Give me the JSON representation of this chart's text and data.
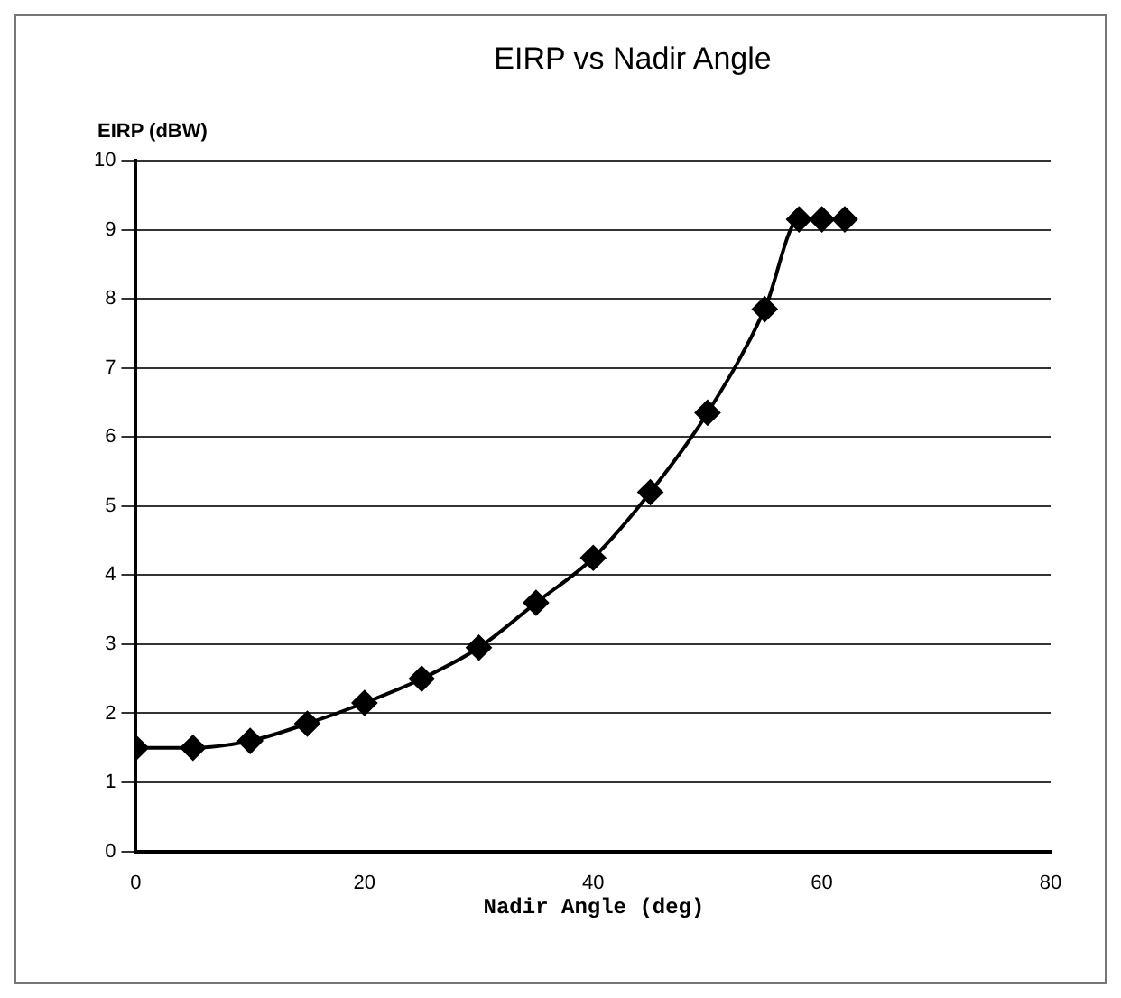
{
  "chart_data": {
    "type": "line",
    "title": "EIRP vs Nadir Angle",
    "xlabel": "Nadir Angle (deg)",
    "ylabel": "EIRP (dBW)",
    "x": [
      0,
      5,
      10,
      15,
      20,
      25,
      30,
      35,
      40,
      45,
      50,
      55,
      58,
      60,
      62
    ],
    "series": [
      {
        "color": "#000000",
        "values": [
          1.5,
          1.5,
          1.6,
          1.85,
          2.15,
          2.5,
          2.95,
          3.6,
          4.25,
          5.2,
          6.35,
          7.85,
          9.15,
          9.15,
          9.15
        ]
      }
    ],
    "xlim": [
      0,
      80
    ],
    "xticks": [
      0,
      20,
      40,
      60,
      80
    ],
    "ylim": [
      0,
      10
    ],
    "yticks": [
      0,
      1,
      2,
      3,
      4,
      5,
      6,
      7,
      8,
      9,
      10
    ],
    "grid": "y",
    "legend": false,
    "marker": "diamond",
    "line_style": "solid"
  }
}
